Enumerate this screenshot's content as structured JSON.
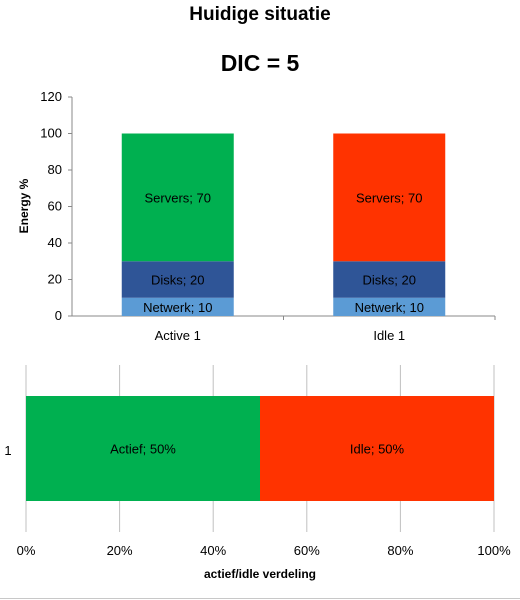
{
  "page_title": "Huidige situatie",
  "dic_label": "DIC = 5",
  "colors": {
    "active_servers": "#00b050",
    "idle_servers": "#ff3300",
    "disks": "#2f5597",
    "netwerk": "#5b9bd5",
    "axis": "#888888",
    "grid": "#c0c0c0"
  },
  "chart_data": [
    {
      "type": "bar",
      "stacked": true,
      "ylabel": "Energy %",
      "ylim": [
        0,
        120
      ],
      "yticks": [
        0,
        20,
        40,
        60,
        80,
        100,
        120
      ],
      "categories": [
        "Active 1",
        "Idle 1"
      ],
      "series": [
        {
          "name": "Netwerk",
          "values": [
            10,
            10
          ],
          "labels": [
            "Netwerk; 10",
            "Netwerk; 10"
          ]
        },
        {
          "name": "Disks",
          "values": [
            20,
            20
          ],
          "labels": [
            "Disks; 20",
            "Disks; 20"
          ]
        },
        {
          "name": "Servers",
          "values": [
            70,
            70
          ],
          "labels": [
            "Servers; 70",
            "Servers; 70"
          ]
        }
      ],
      "grid": false,
      "legend": "none"
    },
    {
      "type": "bar",
      "orientation": "horizontal",
      "stacked": true,
      "percent": true,
      "xlabel": "actief/idle verdeling",
      "xticks": [
        "0%",
        "20%",
        "40%",
        "60%",
        "80%",
        "100%"
      ],
      "categories": [
        "1"
      ],
      "series": [
        {
          "name": "Actief",
          "values": [
            50
          ],
          "labels": [
            "Actief; 50%"
          ]
        },
        {
          "name": "Idle",
          "values": [
            50
          ],
          "labels": [
            "Idle; 50%"
          ]
        }
      ],
      "grid": true,
      "legend": "none"
    }
  ]
}
